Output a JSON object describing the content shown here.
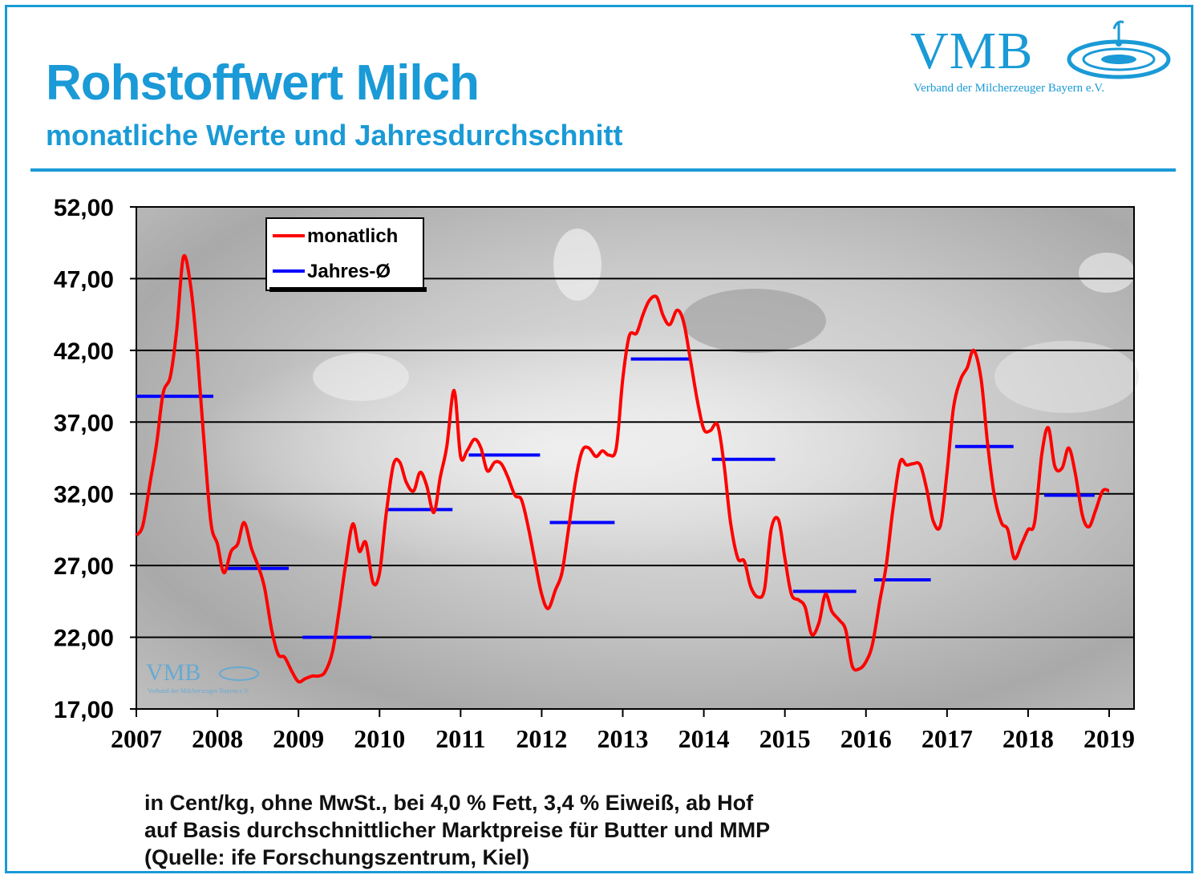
{
  "header": {
    "title": "Rohstoffwert Milch",
    "subtitle": "monatliche  Werte  und  Jahresdurchschnitt"
  },
  "logo": {
    "text": "VMB",
    "subtext": "Verband der Milcherzeuger Bayern e.V.",
    "watermark_text": "VMB",
    "watermark_subtext": "Verband der Milcherzeuger Bayern e.V."
  },
  "colors": {
    "brand": "#1a9ad6",
    "monthly_line": "#ff0000",
    "annual_avg": "#0000ff"
  },
  "footnote": {
    "line1": "in Cent/kg, ohne MwSt., bei 4,0 % Fett, 3,4 % Eiweiß, ab Hof",
    "line2": "auf Basis durchschnittlicher Marktpreise für Butter und MMP",
    "line3": "(Quelle: ife Forschungszentrum, Kiel)"
  },
  "chart_data": {
    "type": "line",
    "title": "",
    "xlabel": "",
    "ylabel": "",
    "ylim": [
      17,
      52
    ],
    "xlim": [
      2007,
      2019.2
    ],
    "y_ticks": [
      "17,00",
      "22,00",
      "27,00",
      "32,00",
      "37,00",
      "42,00",
      "47,00",
      "52,00"
    ],
    "x_ticks": [
      "2007",
      "2008",
      "2009",
      "2010",
      "2011",
      "2012",
      "2013",
      "2014",
      "2015",
      "2016",
      "2017",
      "2018",
      "2019"
    ],
    "grid": "horizontal",
    "legend": "top-left",
    "series": [
      {
        "name": "monatlich",
        "type": "line",
        "x": [
          2007.0,
          2007.08,
          2007.17,
          2007.25,
          2007.33,
          2007.42,
          2007.5,
          2007.58,
          2007.67,
          2007.75,
          2007.83,
          2007.92,
          2008.0,
          2008.08,
          2008.17,
          2008.25,
          2008.33,
          2008.42,
          2008.5,
          2008.58,
          2008.67,
          2008.75,
          2008.83,
          2008.92,
          2009.0,
          2009.08,
          2009.17,
          2009.25,
          2009.33,
          2009.42,
          2009.5,
          2009.58,
          2009.67,
          2009.75,
          2009.83,
          2009.92,
          2010.0,
          2010.08,
          2010.17,
          2010.25,
          2010.33,
          2010.42,
          2010.5,
          2010.58,
          2010.67,
          2010.75,
          2010.83,
          2010.92,
          2011.0,
          2011.08,
          2011.17,
          2011.25,
          2011.33,
          2011.42,
          2011.5,
          2011.58,
          2011.67,
          2011.75,
          2011.83,
          2011.92,
          2012.0,
          2012.08,
          2012.17,
          2012.25,
          2012.33,
          2012.42,
          2012.5,
          2012.58,
          2012.67,
          2012.75,
          2012.83,
          2012.92,
          2013.0,
          2013.08,
          2013.17,
          2013.25,
          2013.33,
          2013.42,
          2013.5,
          2013.58,
          2013.67,
          2013.75,
          2013.83,
          2013.92,
          2014.0,
          2014.08,
          2014.17,
          2014.25,
          2014.33,
          2014.42,
          2014.5,
          2014.58,
          2014.67,
          2014.75,
          2014.83,
          2014.92,
          2015.0,
          2015.08,
          2015.17,
          2015.25,
          2015.33,
          2015.42,
          2015.5,
          2015.58,
          2015.67,
          2015.75,
          2015.83,
          2015.92,
          2016.0,
          2016.08,
          2016.17,
          2016.25,
          2016.33,
          2016.42,
          2016.5,
          2016.58,
          2016.67,
          2016.75,
          2016.83,
          2016.92,
          2017.0,
          2017.08,
          2017.17,
          2017.25,
          2017.33,
          2017.42,
          2017.5,
          2017.58,
          2017.67,
          2017.75,
          2017.83,
          2017.92,
          2018.0,
          2018.08,
          2018.17,
          2018.25,
          2018.33,
          2018.42,
          2018.5,
          2018.58,
          2018.67,
          2018.75,
          2018.83,
          2018.92,
          2019.0
        ],
        "values": [
          29.1,
          29.8,
          32.8,
          35.5,
          39.0,
          40.2,
          43.5,
          48.5,
          46.5,
          42.0,
          36.0,
          30.0,
          28.5,
          26.5,
          28.0,
          28.5,
          30.0,
          28.2,
          27.0,
          25.5,
          22.5,
          20.8,
          20.6,
          19.6,
          18.9,
          19.1,
          19.3,
          19.3,
          19.6,
          21.0,
          23.8,
          27.0,
          29.9,
          28.0,
          28.6,
          25.8,
          26.5,
          30.5,
          34.0,
          34.2,
          32.8,
          32.2,
          33.5,
          32.6,
          30.7,
          33.2,
          35.3,
          39.2,
          34.6,
          35.0,
          35.8,
          35.2,
          33.6,
          34.2,
          34.1,
          33.2,
          31.9,
          31.6,
          29.8,
          27.2,
          25.0,
          24.0,
          25.3,
          26.5,
          29.5,
          33.0,
          35.0,
          35.2,
          34.6,
          35.0,
          34.7,
          35.2,
          40.0,
          43.0,
          43.2,
          44.5,
          45.5,
          45.7,
          44.4,
          43.8,
          44.8,
          44.0,
          41.5,
          38.5,
          36.5,
          36.4,
          36.8,
          34.0,
          30.0,
          27.5,
          27.3,
          25.5,
          24.8,
          25.4,
          29.5,
          30.2,
          27.5,
          25.0,
          24.6,
          24.1,
          22.2,
          23.0,
          25.0,
          23.8,
          23.2,
          22.5,
          20.0,
          19.8,
          20.3,
          21.5,
          24.5,
          27.0,
          30.8,
          34.2,
          34.0,
          34.1,
          34.0,
          32.3,
          30.1,
          29.8,
          33.5,
          38.0,
          40.0,
          40.8,
          42.0,
          40.0,
          35.5,
          32.0,
          30.0,
          29.5,
          27.5,
          28.5,
          29.5,
          30.0,
          34.8,
          36.6,
          33.9,
          33.8,
          35.2,
          33.5,
          30.5,
          29.7,
          30.8,
          32.2,
          32.2
        ]
      },
      {
        "name": "Jahres-Ø",
        "type": "segments",
        "segments": [
          {
            "x0": 2007.0,
            "x1": 2007.95,
            "y": 38.8
          },
          {
            "x0": 2008.1,
            "x1": 2008.88,
            "y": 26.8
          },
          {
            "x0": 2009.05,
            "x1": 2009.9,
            "y": 22.0
          },
          {
            "x0": 2010.1,
            "x1": 2010.9,
            "y": 30.9
          },
          {
            "x0": 2011.1,
            "x1": 2011.98,
            "y": 34.7
          },
          {
            "x0": 2012.1,
            "x1": 2012.9,
            "y": 30.0
          },
          {
            "x0": 2013.1,
            "x1": 2013.85,
            "y": 41.4
          },
          {
            "x0": 2014.1,
            "x1": 2014.88,
            "y": 34.4
          },
          {
            "x0": 2015.1,
            "x1": 2015.88,
            "y": 25.2
          },
          {
            "x0": 2016.1,
            "x1": 2016.8,
            "y": 26.0
          },
          {
            "x0": 2017.1,
            "x1": 2017.82,
            "y": 35.3
          },
          {
            "x0": 2018.2,
            "x1": 2018.82,
            "y": 31.9
          }
        ]
      }
    ]
  }
}
